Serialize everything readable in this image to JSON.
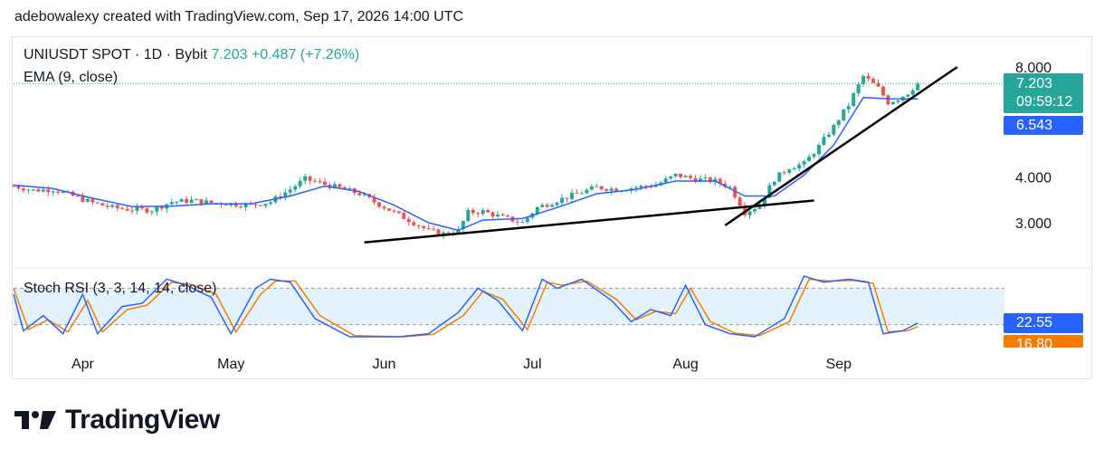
{
  "header": {
    "caption": "adebowalexy created with TradingView.com, Sep 17, 2026 14:00 UTC"
  },
  "legend": {
    "symbol": "UNIUSDT SPOT · 1D · Bybit",
    "last": "7.203",
    "change": "+0.487 (+7.26%)",
    "ema": "EMA (9, close)",
    "stoch": "Stoch RSI (3, 3, 14, 14, close)"
  },
  "price_labels": {
    "last_price": "7.203",
    "countdown": "09:59:12",
    "ema_value": "6.543",
    "stoch_k": "22.55",
    "stoch_d": "16.80"
  },
  "brand": {
    "name": "TradingView"
  },
  "colors": {
    "up": "#26a69a",
    "down": "#ef5350",
    "ema": "#2962ff",
    "stoch_k": "#2962ff",
    "stoch_d": "#f57c00",
    "band": "#e3f2fd",
    "trendline": "#000000"
  },
  "chart_data": {
    "type": "candlestick",
    "symbol": "UNIUSDT",
    "scale": "log",
    "y_ticks": [
      8.0,
      4.0,
      3.0
    ],
    "y_tick_labels": [
      "8.000",
      "4.000",
      "3.000"
    ],
    "ylim": [
      2.6,
      8.4
    ],
    "x_labels": [
      {
        "label": "Apr",
        "date": "2026-04-01"
      },
      {
        "label": "May",
        "date": "2026-05-01"
      },
      {
        "label": "Jun",
        "date": "2026-06-01"
      },
      {
        "label": "Jul",
        "date": "2026-07-01"
      },
      {
        "label": "Aug",
        "date": "2026-08-01"
      },
      {
        "label": "Sep",
        "date": "2026-09-01"
      }
    ],
    "start_date": "2026-03-18",
    "last_price": 7.203,
    "ema_last": 6.543,
    "close_path": [
      [
        "2026-03-18",
        3.78
      ],
      [
        "2026-03-22",
        3.68
      ],
      [
        "2026-03-26",
        3.7
      ],
      [
        "2026-03-30",
        3.55
      ],
      [
        "2026-04-03",
        3.4
      ],
      [
        "2026-04-07",
        3.3
      ],
      [
        "2026-04-11",
        3.26
      ],
      [
        "2026-04-15",
        3.25
      ],
      [
        "2026-04-19",
        3.42
      ],
      [
        "2026-04-23",
        3.45
      ],
      [
        "2026-04-27",
        3.4
      ],
      [
        "2026-05-01",
        3.38
      ],
      [
        "2026-05-05",
        3.35
      ],
      [
        "2026-05-09",
        3.42
      ],
      [
        "2026-05-13",
        3.7
      ],
      [
        "2026-05-16",
        3.95
      ],
      [
        "2026-05-20",
        3.82
      ],
      [
        "2026-05-24",
        3.7
      ],
      [
        "2026-05-27",
        3.6
      ],
      [
        "2026-05-30",
        3.42
      ],
      [
        "2026-06-03",
        3.2
      ],
      [
        "2026-06-07",
        3.0
      ],
      [
        "2026-06-10",
        2.85
      ],
      [
        "2026-06-13",
        2.8
      ],
      [
        "2026-06-16",
        2.85
      ],
      [
        "2026-06-18",
        3.2
      ],
      [
        "2026-06-21",
        3.22
      ],
      [
        "2026-06-25",
        3.1
      ],
      [
        "2026-06-29",
        3.0
      ],
      [
        "2026-07-02",
        3.3
      ],
      [
        "2026-07-06",
        3.45
      ],
      [
        "2026-07-10",
        3.6
      ],
      [
        "2026-07-14",
        3.75
      ],
      [
        "2026-07-18",
        3.7
      ],
      [
        "2026-07-22",
        3.75
      ],
      [
        "2026-07-26",
        3.8
      ],
      [
        "2026-07-30",
        4.05
      ],
      [
        "2026-08-03",
        3.95
      ],
      [
        "2026-08-07",
        3.9
      ],
      [
        "2026-08-10",
        3.75
      ],
      [
        "2026-08-13",
        3.2
      ],
      [
        "2026-08-16",
        3.35
      ],
      [
        "2026-08-19",
        3.95
      ],
      [
        "2026-08-22",
        4.25
      ],
      [
        "2026-08-25",
        4.35
      ],
      [
        "2026-08-28",
        4.85
      ],
      [
        "2026-08-31",
        5.5
      ],
      [
        "2026-09-03",
        6.3
      ],
      [
        "2026-09-06",
        7.55
      ],
      [
        "2026-09-09",
        7.0
      ],
      [
        "2026-09-11",
        6.4
      ],
      [
        "2026-09-13",
        6.55
      ],
      [
        "2026-09-15",
        6.8
      ],
      [
        "2026-09-17",
        7.203
      ]
    ],
    "ema_path": [
      [
        "2026-03-18",
        3.8
      ],
      [
        "2026-03-26",
        3.72
      ],
      [
        "2026-04-03",
        3.5
      ],
      [
        "2026-04-11",
        3.32
      ],
      [
        "2026-04-19",
        3.33
      ],
      [
        "2026-04-27",
        3.38
      ],
      [
        "2026-05-05",
        3.38
      ],
      [
        "2026-05-13",
        3.55
      ],
      [
        "2026-05-20",
        3.78
      ],
      [
        "2026-05-27",
        3.65
      ],
      [
        "2026-06-03",
        3.35
      ],
      [
        "2026-06-10",
        3.0
      ],
      [
        "2026-06-16",
        2.86
      ],
      [
        "2026-06-21",
        3.05
      ],
      [
        "2026-06-29",
        3.08
      ],
      [
        "2026-07-06",
        3.3
      ],
      [
        "2026-07-14",
        3.6
      ],
      [
        "2026-07-22",
        3.7
      ],
      [
        "2026-07-30",
        3.9
      ],
      [
        "2026-08-07",
        3.9
      ],
      [
        "2026-08-13",
        3.55
      ],
      [
        "2026-08-19",
        3.55
      ],
      [
        "2026-08-25",
        4.05
      ],
      [
        "2026-08-31",
        4.9
      ],
      [
        "2026-09-06",
        6.6
      ],
      [
        "2026-09-11",
        6.55
      ],
      [
        "2026-09-17",
        6.543
      ]
    ],
    "trendlines": [
      {
        "from": [
          "2026-05-28",
          2.65
        ],
        "to": [
          "2026-08-27",
          3.45
        ]
      },
      {
        "from": [
          "2026-08-09",
          2.95
        ],
        "to": [
          "2026-09-25",
          8.0
        ]
      }
    ],
    "stoch_rsi": {
      "k_last": 22.55,
      "d_last": 16.8,
      "bands": [
        80,
        20
      ],
      "k_path": [
        [
          "2026-03-18",
          70
        ],
        [
          "2026-03-20",
          10
        ],
        [
          "2026-03-24",
          35
        ],
        [
          "2026-03-28",
          5
        ],
        [
          "2026-04-01",
          70
        ],
        [
          "2026-04-04",
          5
        ],
        [
          "2026-04-09",
          50
        ],
        [
          "2026-04-13",
          55
        ],
        [
          "2026-04-18",
          95
        ],
        [
          "2026-04-22",
          85
        ],
        [
          "2026-04-27",
          65
        ],
        [
          "2026-05-01",
          5
        ],
        [
          "2026-05-06",
          80
        ],
        [
          "2026-05-09",
          95
        ],
        [
          "2026-05-13",
          90
        ],
        [
          "2026-05-18",
          30
        ],
        [
          "2026-05-25",
          0
        ],
        [
          "2026-06-04",
          0
        ],
        [
          "2026-06-10",
          5
        ],
        [
          "2026-06-16",
          40
        ],
        [
          "2026-06-20",
          80
        ],
        [
          "2026-06-24",
          60
        ],
        [
          "2026-06-29",
          10
        ],
        [
          "2026-07-03",
          95
        ],
        [
          "2026-07-06",
          80
        ],
        [
          "2026-07-11",
          95
        ],
        [
          "2026-07-17",
          60
        ],
        [
          "2026-07-21",
          25
        ],
        [
          "2026-07-25",
          45
        ],
        [
          "2026-07-29",
          35
        ],
        [
          "2026-08-01",
          85
        ],
        [
          "2026-08-05",
          20
        ],
        [
          "2026-08-10",
          5
        ],
        [
          "2026-08-15",
          0
        ],
        [
          "2026-08-21",
          30
        ],
        [
          "2026-08-25",
          100
        ],
        [
          "2026-08-29",
          90
        ],
        [
          "2026-09-03",
          95
        ],
        [
          "2026-09-07",
          90
        ],
        [
          "2026-09-10",
          5
        ],
        [
          "2026-09-14",
          10
        ],
        [
          "2026-09-17",
          22.55
        ]
      ],
      "d_path": [
        [
          "2026-03-18",
          80
        ],
        [
          "2026-03-21",
          12
        ],
        [
          "2026-03-25",
          28
        ],
        [
          "2026-03-29",
          8
        ],
        [
          "2026-04-02",
          60
        ],
        [
          "2026-04-05",
          8
        ],
        [
          "2026-04-10",
          45
        ],
        [
          "2026-04-14",
          52
        ],
        [
          "2026-04-19",
          90
        ],
        [
          "2026-04-23",
          86
        ],
        [
          "2026-04-28",
          70
        ],
        [
          "2026-05-02",
          8
        ],
        [
          "2026-05-07",
          70
        ],
        [
          "2026-05-10",
          92
        ],
        [
          "2026-05-14",
          92
        ],
        [
          "2026-05-19",
          35
        ],
        [
          "2026-05-26",
          2
        ],
        [
          "2026-06-05",
          0
        ],
        [
          "2026-06-11",
          4
        ],
        [
          "2026-06-17",
          35
        ],
        [
          "2026-06-21",
          75
        ],
        [
          "2026-06-25",
          62
        ],
        [
          "2026-06-30",
          12
        ],
        [
          "2026-07-04",
          90
        ],
        [
          "2026-07-07",
          85
        ],
        [
          "2026-07-12",
          92
        ],
        [
          "2026-07-18",
          62
        ],
        [
          "2026-07-22",
          28
        ],
        [
          "2026-07-26",
          42
        ],
        [
          "2026-07-30",
          38
        ],
        [
          "2026-08-02",
          80
        ],
        [
          "2026-08-06",
          25
        ],
        [
          "2026-08-11",
          6
        ],
        [
          "2026-08-16",
          2
        ],
        [
          "2026-08-22",
          25
        ],
        [
          "2026-08-26",
          95
        ],
        [
          "2026-08-30",
          92
        ],
        [
          "2026-09-04",
          93
        ],
        [
          "2026-09-08",
          88
        ],
        [
          "2026-09-11",
          8
        ],
        [
          "2026-09-15",
          10
        ],
        [
          "2026-09-17",
          16.8
        ]
      ]
    }
  }
}
